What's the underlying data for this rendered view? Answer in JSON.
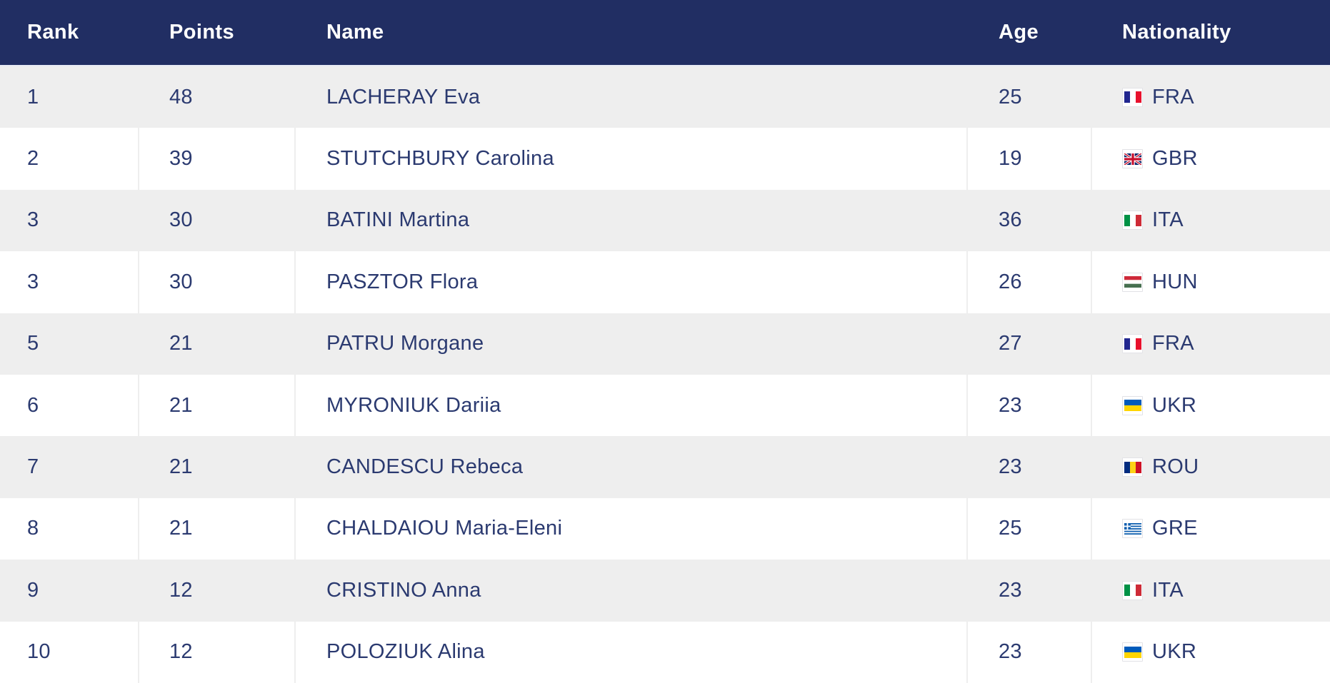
{
  "table": {
    "columns": {
      "rank": "Rank",
      "points": "Points",
      "name": "Name",
      "age": "Age",
      "nationality": "Nationality"
    },
    "rows": [
      {
        "rank": "1",
        "points": "48",
        "name": "LACHERAY Eva",
        "age": "25",
        "nationality": "FRA"
      },
      {
        "rank": "2",
        "points": "39",
        "name": "STUTCHBURY Carolina",
        "age": "19",
        "nationality": "GBR"
      },
      {
        "rank": "3",
        "points": "30",
        "name": "BATINI Martina",
        "age": "36",
        "nationality": "ITA"
      },
      {
        "rank": "3",
        "points": "30",
        "name": "PASZTOR Flora",
        "age": "26",
        "nationality": "HUN"
      },
      {
        "rank": "5",
        "points": "21",
        "name": "PATRU Morgane",
        "age": "27",
        "nationality": "FRA"
      },
      {
        "rank": "6",
        "points": "21",
        "name": "MYRONIUK Dariia",
        "age": "23",
        "nationality": "UKR"
      },
      {
        "rank": "7",
        "points": "21",
        "name": "CANDESCU Rebeca",
        "age": "23",
        "nationality": "ROU"
      },
      {
        "rank": "8",
        "points": "21",
        "name": "CHALDAIOU Maria-Eleni",
        "age": "25",
        "nationality": "GRE"
      },
      {
        "rank": "9",
        "points": "12",
        "name": "CRISTINO Anna",
        "age": "23",
        "nationality": "ITA"
      },
      {
        "rank": "10",
        "points": "12",
        "name": "POLOZIUK Alina",
        "age": "23",
        "nationality": "UKR"
      }
    ],
    "colors": {
      "header_bg": "#212e63",
      "header_text": "#ffffff",
      "row_bg": "#ffffff",
      "row_alt_bg": "#eeeeee",
      "cell_text": "#2b3a70",
      "divider": "#eeeeee"
    }
  }
}
